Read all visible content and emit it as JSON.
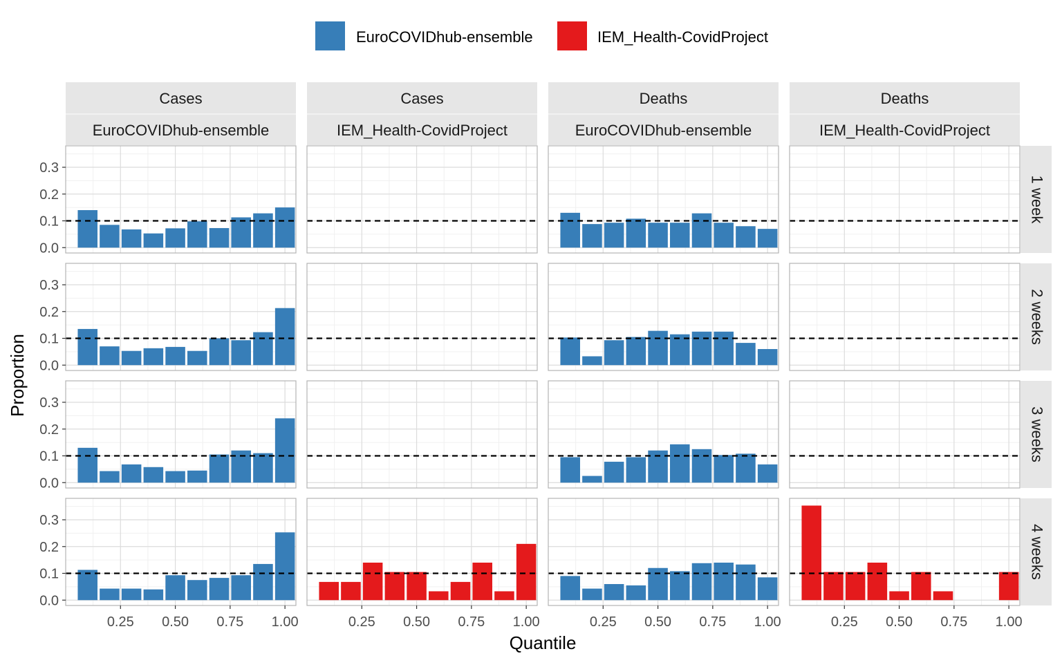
{
  "chart_data": {
    "type": "bar",
    "xlabel": "Quantile",
    "ylabel": "Proportion",
    "xlim": [
      0,
      1.05
    ],
    "ylim": [
      -0.02,
      0.38
    ],
    "x_ticks": [
      0.25,
      0.5,
      0.75,
      1.0
    ],
    "x_tick_labels": [
      "0.25",
      "0.50",
      "0.75",
      "1.00"
    ],
    "y_ticks": [
      0.0,
      0.1,
      0.2,
      0.3
    ],
    "y_tick_labels": [
      "0.0",
      "0.1",
      "0.2",
      "0.3"
    ],
    "reference_line": 0.1,
    "bin_centers": [
      0.1,
      0.2,
      0.3,
      0.4,
      0.5,
      0.6,
      0.7,
      0.8,
      0.9,
      1.0
    ],
    "legend": {
      "position": "top",
      "items": [
        {
          "label": "EuroCOVIDhub-ensemble",
          "color": "#377eb8"
        },
        {
          "label": "IEM_Health-CovidProject",
          "color": "#e41a1c"
        }
      ]
    },
    "columns": [
      {
        "target": "Cases",
        "model": "EuroCOVIDhub-ensemble"
      },
      {
        "target": "Cases",
        "model": "IEM_Health-CovidProject"
      },
      {
        "target": "Deaths",
        "model": "EuroCOVIDhub-ensemble"
      },
      {
        "target": "Deaths",
        "model": "IEM_Health-CovidProject"
      }
    ],
    "rows": [
      "1 week",
      "2 weeks",
      "3 weeks",
      "4 weeks"
    ],
    "panels": [
      [
        [
          0.14,
          0.085,
          0.068,
          0.053,
          0.072,
          0.098,
          0.073,
          0.113,
          0.128,
          0.15
        ],
        null,
        [
          0.13,
          0.088,
          0.093,
          0.108,
          0.093,
          0.093,
          0.128,
          0.093,
          0.08,
          0.07
        ],
        null
      ],
      [
        [
          0.135,
          0.07,
          0.053,
          0.063,
          0.068,
          0.053,
          0.1,
          0.093,
          0.123,
          0.213
        ],
        null,
        [
          0.103,
          0.033,
          0.093,
          0.105,
          0.128,
          0.115,
          0.125,
          0.125,
          0.083,
          0.06
        ],
        null
      ],
      [
        [
          0.13,
          0.043,
          0.068,
          0.058,
          0.043,
          0.045,
          0.105,
          0.12,
          0.11,
          0.24
        ],
        null,
        [
          0.095,
          0.025,
          0.078,
          0.095,
          0.12,
          0.143,
          0.125,
          0.103,
          0.108,
          0.068
        ],
        null
      ],
      [
        [
          0.113,
          0.043,
          0.043,
          0.04,
          0.093,
          0.075,
          0.083,
          0.093,
          0.135,
          0.253
        ],
        [
          0.068,
          0.068,
          0.14,
          0.105,
          0.105,
          0.033,
          0.068,
          0.14,
          0.033,
          0.21
        ],
        [
          0.09,
          0.043,
          0.06,
          0.055,
          0.12,
          0.108,
          0.138,
          0.14,
          0.133,
          0.085
        ],
        [
          0.353,
          0.105,
          0.105,
          0.14,
          0.033,
          0.105,
          0.033,
          0.0,
          0.0,
          0.105
        ]
      ]
    ]
  }
}
